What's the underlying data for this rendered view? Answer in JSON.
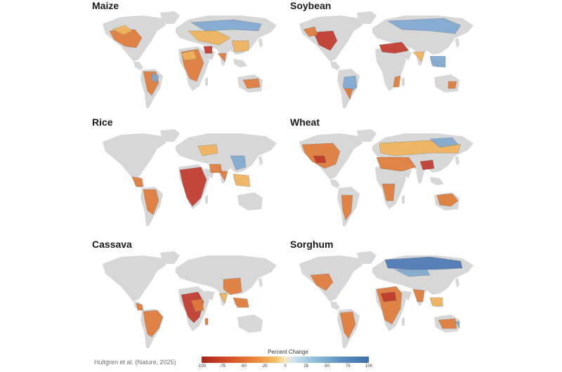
{
  "panels": [
    {
      "id": "maize",
      "title": "Maize"
    },
    {
      "id": "soybean",
      "title": "Soybean"
    },
    {
      "id": "rice",
      "title": "Rice"
    },
    {
      "id": "wheat",
      "title": "Wheat"
    },
    {
      "id": "cassava",
      "title": "Cassava"
    },
    {
      "id": "sorghum",
      "title": "Sorghum"
    }
  ],
  "legend": {
    "title": "Percent Change",
    "ticks": [
      "-100",
      "-75",
      "-50",
      "-25",
      "0",
      "25",
      "50",
      "75",
      "100"
    ],
    "colors": [
      "#a8231c",
      "#d8542a",
      "#ec8a3c",
      "#f4c468",
      "#f5e9c4",
      "#cfe4ee",
      "#8fbcd9",
      "#5b8fc2",
      "#3e6ea8"
    ]
  },
  "credit": "Hultgren et al. (Nature, 2025)",
  "map_colors": {
    "land": "#d7d7d7",
    "deep_loss": "#c0392b",
    "loss": "#e07b39",
    "mild_loss": "#f0b35a",
    "gain": "#7fa8d1",
    "strong_gain": "#4a78b5"
  }
}
